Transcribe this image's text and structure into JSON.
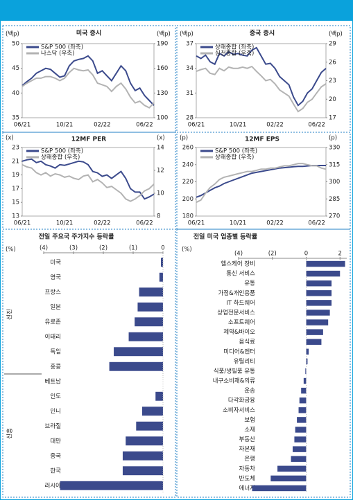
{
  "chart_data": [
    {
      "type": "line",
      "title": "미국 증시",
      "y_label": "(백p)",
      "y2_label": "(백p)",
      "categories": [
        "06/21",
        null,
        null,
        null,
        null,
        null,
        null,
        null,
        null,
        "10/21",
        null,
        null,
        null,
        null,
        null,
        null,
        null,
        "02/22",
        null,
        null,
        null,
        null,
        null,
        null,
        null,
        null,
        "06/22",
        null,
        null
      ],
      "ylim": [
        35,
        50
      ],
      "yticks": [
        35,
        40,
        45,
        50
      ],
      "y2lim": [
        100,
        190
      ],
      "y2ticks": [
        100,
        130,
        160,
        190
      ],
      "series": [
        {
          "name": "S&P 500 (좌축)",
          "color": "#3b4a8c",
          "values": [
            41.5,
            42.3,
            43,
            44,
            44.5,
            45,
            44.8,
            44,
            43.2,
            43.5,
            45.5,
            46.5,
            46.8,
            47,
            47.5,
            46.5,
            44,
            44.5,
            43.5,
            42.5,
            44,
            45.5,
            44.5,
            42,
            40.5,
            41,
            39.5,
            38.5,
            37.5
          ]
        },
        {
          "name": "나스닥 (우축)",
          "color": "#b3b3b3",
          "axis": "y2",
          "values": [
            138,
            142,
            145,
            148,
            148,
            150,
            150,
            148,
            145,
            148,
            155,
            160,
            158,
            157,
            158,
            152,
            142,
            140,
            138,
            132,
            138,
            142,
            135,
            125,
            118,
            120,
            115,
            112,
            118
          ]
        }
      ]
    },
    {
      "type": "line",
      "title": "중국 증시",
      "y_label": "(백p)",
      "y2_label": "(백p)",
      "categories": [
        "06/21",
        null,
        null,
        null,
        null,
        null,
        null,
        null,
        null,
        "10/21",
        null,
        null,
        null,
        null,
        null,
        null,
        null,
        "02/22",
        null,
        null,
        null,
        null,
        null,
        null,
        null,
        null,
        "06/22",
        null,
        null
      ],
      "ylim": [
        28,
        37
      ],
      "yticks": [
        28,
        31,
        34,
        37
      ],
      "y2lim": [
        17,
        29
      ],
      "y2ticks": [
        17,
        20,
        23,
        26,
        29
      ],
      "series": [
        {
          "name": "상해종합 (좌축)",
          "color": "#3b4a8c",
          "values": [
            35.5,
            35.2,
            35.6,
            34.8,
            34.5,
            35.8,
            35.5,
            36,
            35.7,
            35.8,
            35.6,
            35.5,
            36.2,
            36.5,
            35.5,
            34.5,
            34.6,
            34,
            33,
            32.5,
            32,
            30.5,
            29.5,
            30,
            31,
            31.5,
            32.5,
            33.5,
            34
          ]
        },
        {
          "name": "심천종합 (우축)",
          "color": "#b3b3b3",
          "axis": "y2",
          "values": [
            24.5,
            24.8,
            25,
            24.2,
            24,
            25,
            24.6,
            25.2,
            25,
            25,
            25.2,
            25,
            25.3,
            24.5,
            23.8,
            23,
            23.2,
            22.5,
            21.5,
            21,
            20.5,
            19.2,
            18,
            18.5,
            19.5,
            20,
            21,
            22,
            22.5
          ]
        }
      ]
    },
    {
      "type": "line",
      "title": "12MF PER",
      "y_label": "(x)",
      "y2_label": "(x)",
      "categories": [
        "06/21",
        null,
        null,
        null,
        null,
        null,
        null,
        null,
        null,
        "10/21",
        null,
        null,
        null,
        null,
        null,
        null,
        null,
        "02/22",
        null,
        null,
        null,
        null,
        null,
        null,
        null,
        null,
        "06/22",
        null,
        null
      ],
      "ylim": [
        13,
        23
      ],
      "yticks": [
        13,
        15,
        17,
        19,
        21,
        23
      ],
      "y2lim": [
        8,
        14
      ],
      "y2ticks": [
        8,
        10,
        12,
        14
      ],
      "series": [
        {
          "name": "S&P 500 (좌축)",
          "color": "#3b4a8c",
          "values": [
            21,
            21.2,
            21.3,
            20.8,
            21,
            20.5,
            20.3,
            20,
            20.5,
            20.4,
            20.6,
            20.8,
            21,
            20.9,
            20.5,
            19.5,
            19.3,
            18.8,
            19,
            18.5,
            19,
            19.5,
            18.5,
            17,
            16.5,
            16.5,
            15.5,
            15.8,
            16.2
          ]
        },
        {
          "name": "상해종합 (우축)",
          "color": "#b3b3b3",
          "axis": "y2",
          "values": [
            12.5,
            12.3,
            12.2,
            11.8,
            11.6,
            11.8,
            11.5,
            11.7,
            11.6,
            11.4,
            11.5,
            11.3,
            11.2,
            11.5,
            11.6,
            11,
            11.2,
            10.9,
            10.5,
            10.6,
            10.3,
            10,
            9.5,
            9.3,
            9.5,
            9.8,
            10.2,
            10.4,
            10.8
          ]
        }
      ]
    },
    {
      "type": "line",
      "title": "12MF EPS",
      "y_label": "(p)",
      "y2_label": "(p)",
      "categories": [
        "06/21",
        null,
        null,
        null,
        null,
        null,
        null,
        null,
        null,
        "10/21",
        null,
        null,
        null,
        null,
        null,
        null,
        null,
        "02/22",
        null,
        null,
        null,
        null,
        null,
        null,
        null,
        null,
        "06/22",
        null,
        null
      ],
      "ylim": [
        180,
        260
      ],
      "yticks": [
        180,
        200,
        220,
        240,
        260
      ],
      "y2lim": [
        270,
        330
      ],
      "y2ticks": [
        270,
        285,
        300,
        315,
        330
      ],
      "series": [
        {
          "name": "S&P 500 (좌축)",
          "color": "#3b4a8c",
          "values": [
            202,
            204,
            207,
            210,
            213,
            215,
            218,
            220,
            222,
            224,
            226,
            228,
            230,
            231,
            232,
            233,
            234,
            235,
            236,
            236.5,
            237,
            237.5,
            238,
            238,
            238.5,
            239,
            239,
            239,
            239
          ]
        },
        {
          "name": "상해종합 (우축)",
          "color": "#b3b3b3",
          "axis": "y2",
          "values": [
            282,
            284,
            290,
            295,
            298,
            302,
            304,
            305,
            306,
            307,
            308,
            309,
            309,
            310,
            311,
            311,
            312,
            312,
            313,
            314,
            314,
            315,
            316,
            316,
            315,
            314,
            314,
            312,
            311
          ]
        }
      ]
    },
    {
      "type": "hbar",
      "title": "전일 주요국 주가지수 등락률",
      "unit": "(%)",
      "color": "#3b4a8c",
      "xlim": [
        -4,
        0
      ],
      "xticks": [
        {
          "value": -4,
          "label": "(4)"
        },
        {
          "value": -3,
          "label": "(3)"
        },
        {
          "value": -2,
          "label": "(2)"
        },
        {
          "value": -1,
          "label": "(1)"
        },
        0
      ],
      "groups": [
        {
          "label": "선진",
          "categories": [
            "미국",
            "영국",
            "프랑스",
            "일본",
            "유로존",
            "이태리",
            "독일",
            "홍콩"
          ],
          "values": [
            -0.07,
            -0.12,
            -0.8,
            -0.85,
            -0.95,
            -1.15,
            -1.65,
            -1.8
          ]
        },
        {
          "label": "신흥",
          "categories": [
            "베트남",
            "인도",
            "인니",
            "브라질",
            "대만",
            "중국",
            "한국",
            "러시아"
          ],
          "values": [
            0,
            -0.25,
            -0.7,
            -0.9,
            -1.25,
            -1.35,
            -1.35,
            -3.45
          ]
        }
      ]
    },
    {
      "type": "hbar",
      "title": "전일 미국 업종별 등락률",
      "unit": "(%)",
      "color": "#3b4a8c",
      "xlim": [
        -4,
        2.4
      ],
      "xticks": [
        {
          "value": -4,
          "label": "(4)"
        },
        {
          "value": -2,
          "label": "(2)"
        },
        0,
        2
      ],
      "categories": [
        "헬스케어 장비",
        "통신 서비스",
        "유통",
        "가정&개인용품",
        "IT 하드웨어",
        "상업전문서비스",
        "소프트웨어",
        "제약&바이오",
        "음식료",
        "미디어&엔터",
        "유틸리티",
        "식품/생필품 유통",
        "내구소비재&의류",
        "운송",
        "다각화금융",
        "소비자서비스",
        "보험",
        "소재",
        "부동산",
        "자본재",
        "은행",
        "자동차",
        "반도체",
        "에너지"
      ],
      "values": [
        2.3,
        2.0,
        1.5,
        1.5,
        1.5,
        1.4,
        1.3,
        1.0,
        0.9,
        0.15,
        0.08,
        -0.05,
        -0.15,
        -0.3,
        -0.4,
        -0.45,
        -0.55,
        -0.65,
        -0.7,
        -0.8,
        -0.9,
        -1.7,
        -2.1,
        -3.2
      ]
    }
  ]
}
